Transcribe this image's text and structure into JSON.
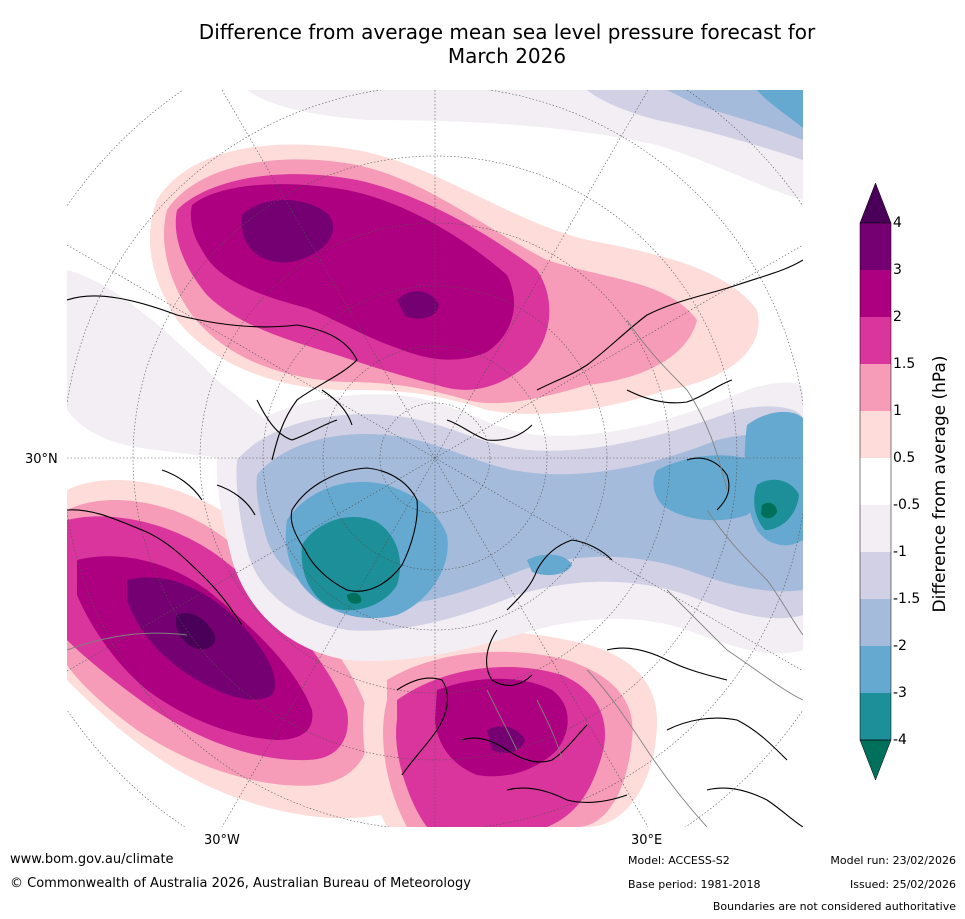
{
  "title_line1": "Difference from average mean sea level pressure forecast for",
  "title_line2": "March 2026",
  "map": {
    "projection": "north polar stereographic",
    "lat_label_30n": "30°N",
    "lon_label_30w": "30°W",
    "lon_label_30e": "30°E"
  },
  "legend": {
    "title": "Difference from average (hPa)",
    "ticks": [
      "4",
      "3",
      "2",
      "1.5",
      "1",
      "0.5",
      "-0.5",
      "-1",
      "-1.5",
      "-2",
      "-3",
      "-4"
    ],
    "colors": {
      "above_4": "#4a0058",
      "3_to_4": "#750072",
      "2_to_3": "#ad0080",
      "1_5_to_2": "#d9359c",
      "1_to_1_5": "#f69bb8",
      "0_5_to_1": "#fddcd9",
      "neutral": "#ffffff",
      "m1_to_m0_5": "#f2eef4",
      "m1_5_to_m1": "#d1d0e4",
      "m2_to_m1_5": "#a5bbdb",
      "m3_to_m2": "#66a9d0",
      "m4_to_m3": "#1c8f98",
      "below_m4": "#00705a"
    }
  },
  "footer": {
    "url": "www.bom.gov.au/climate",
    "copyright": "© Commonwealth of Australia 2026, Australian Bureau of Meteorology",
    "model": "Model: ACCESS-S2",
    "base_period": "Base period: 1981-2018",
    "model_run": "Model run: 23/02/2026",
    "issued": "Issued: 25/02/2026",
    "disclaimer": "Boundaries are not considered authoritative"
  }
}
